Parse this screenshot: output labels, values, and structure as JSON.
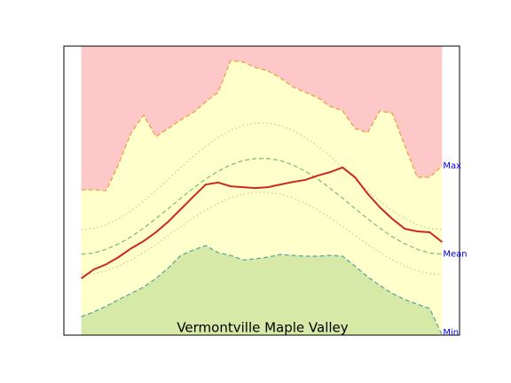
{
  "chart_data": {
    "type": "area-band",
    "title": "Vermontville Maple Valley",
    "xlim": [
      -1.4,
      30.4
    ],
    "ylim": [
      0,
      100
    ],
    "series": [
      {
        "name": "Max",
        "role": "record-max",
        "color": "#f0a040",
        "fill": "#ffc8c8",
        "band_fill": "#ffffcc",
        "values": [
          50.3,
          50.3,
          50,
          59.2,
          69.9,
          76.1,
          68.7,
          71.5,
          74.5,
          77,
          80.7,
          84,
          95,
          94.5,
          92.6,
          91.4,
          89,
          85.9,
          84,
          82.2,
          79.1,
          77.6,
          71.5,
          70,
          77.6,
          76.7,
          65.6,
          54.6,
          54.6,
          58.6
        ]
      },
      {
        "name": "Min",
        "role": "record-min",
        "color": "#5ba8a0",
        "fill": "#d6e9a6",
        "values": [
          6.4,
          8,
          10,
          12.3,
          14.4,
          16.6,
          19.6,
          23.3,
          27.6,
          29.4,
          31,
          28.5,
          27.6,
          26,
          26.4,
          27,
          27.9,
          27.6,
          27.3,
          27.3,
          27.6,
          27.3,
          23.9,
          20.2,
          17.2,
          14.4,
          12.3,
          10.7,
          9.2,
          0
        ]
      },
      {
        "role": "normal-upper",
        "color": "#c8d088",
        "dash": "dotted",
        "values": [
          36.5,
          36.9,
          38.2,
          40.3,
          43,
          46.3,
          50,
          54,
          58,
          61.9,
          65.4,
          68.4,
          70.9,
          72.5,
          73.4,
          73.4,
          72.5,
          70.9,
          68.4,
          65.4,
          61.9,
          58,
          54,
          50,
          46.3,
          43,
          40.3,
          38.2,
          36.9,
          36.5
        ]
      },
      {
        "role": "normal-lower",
        "color": "#c8d088",
        "dash": "dotted",
        "values": [
          21,
          21.3,
          22.3,
          23.9,
          26,
          28.6,
          31.4,
          34.5,
          37.6,
          40.6,
          43.3,
          45.6,
          47.5,
          48.8,
          49.4,
          49.4,
          48.8,
          47.5,
          45.6,
          43.3,
          40.6,
          37.6,
          34.5,
          31.4,
          28.6,
          26,
          23.9,
          22.3,
          21.3,
          21
        ]
      },
      {
        "name": "Mean",
        "role": "normal-mean",
        "color": "#88c070",
        "dash": "dashed",
        "values": [
          28,
          28.4,
          29.7,
          31.6,
          34,
          37,
          40.3,
          43.8,
          47.4,
          50.8,
          54,
          56.7,
          58.9,
          60.4,
          61.1,
          61.1,
          60.4,
          58.9,
          56.7,
          54,
          50.8,
          47.4,
          43.8,
          40.3,
          37,
          34,
          31.6,
          29.7,
          28.4,
          28
        ]
      },
      {
        "role": "current",
        "color": "#cc2a1e",
        "dash": "solid",
        "values": [
          19.6,
          22.7,
          24.5,
          27,
          30,
          32.5,
          35.6,
          39.3,
          43.6,
          47.9,
          52.1,
          52.8,
          51.5,
          51.2,
          50.9,
          51.2,
          52.1,
          53,
          53.7,
          55.2,
          56.4,
          58,
          54.6,
          49,
          44.2,
          40.2,
          36.8,
          35.9,
          35.6,
          32.2
        ]
      }
    ]
  }
}
